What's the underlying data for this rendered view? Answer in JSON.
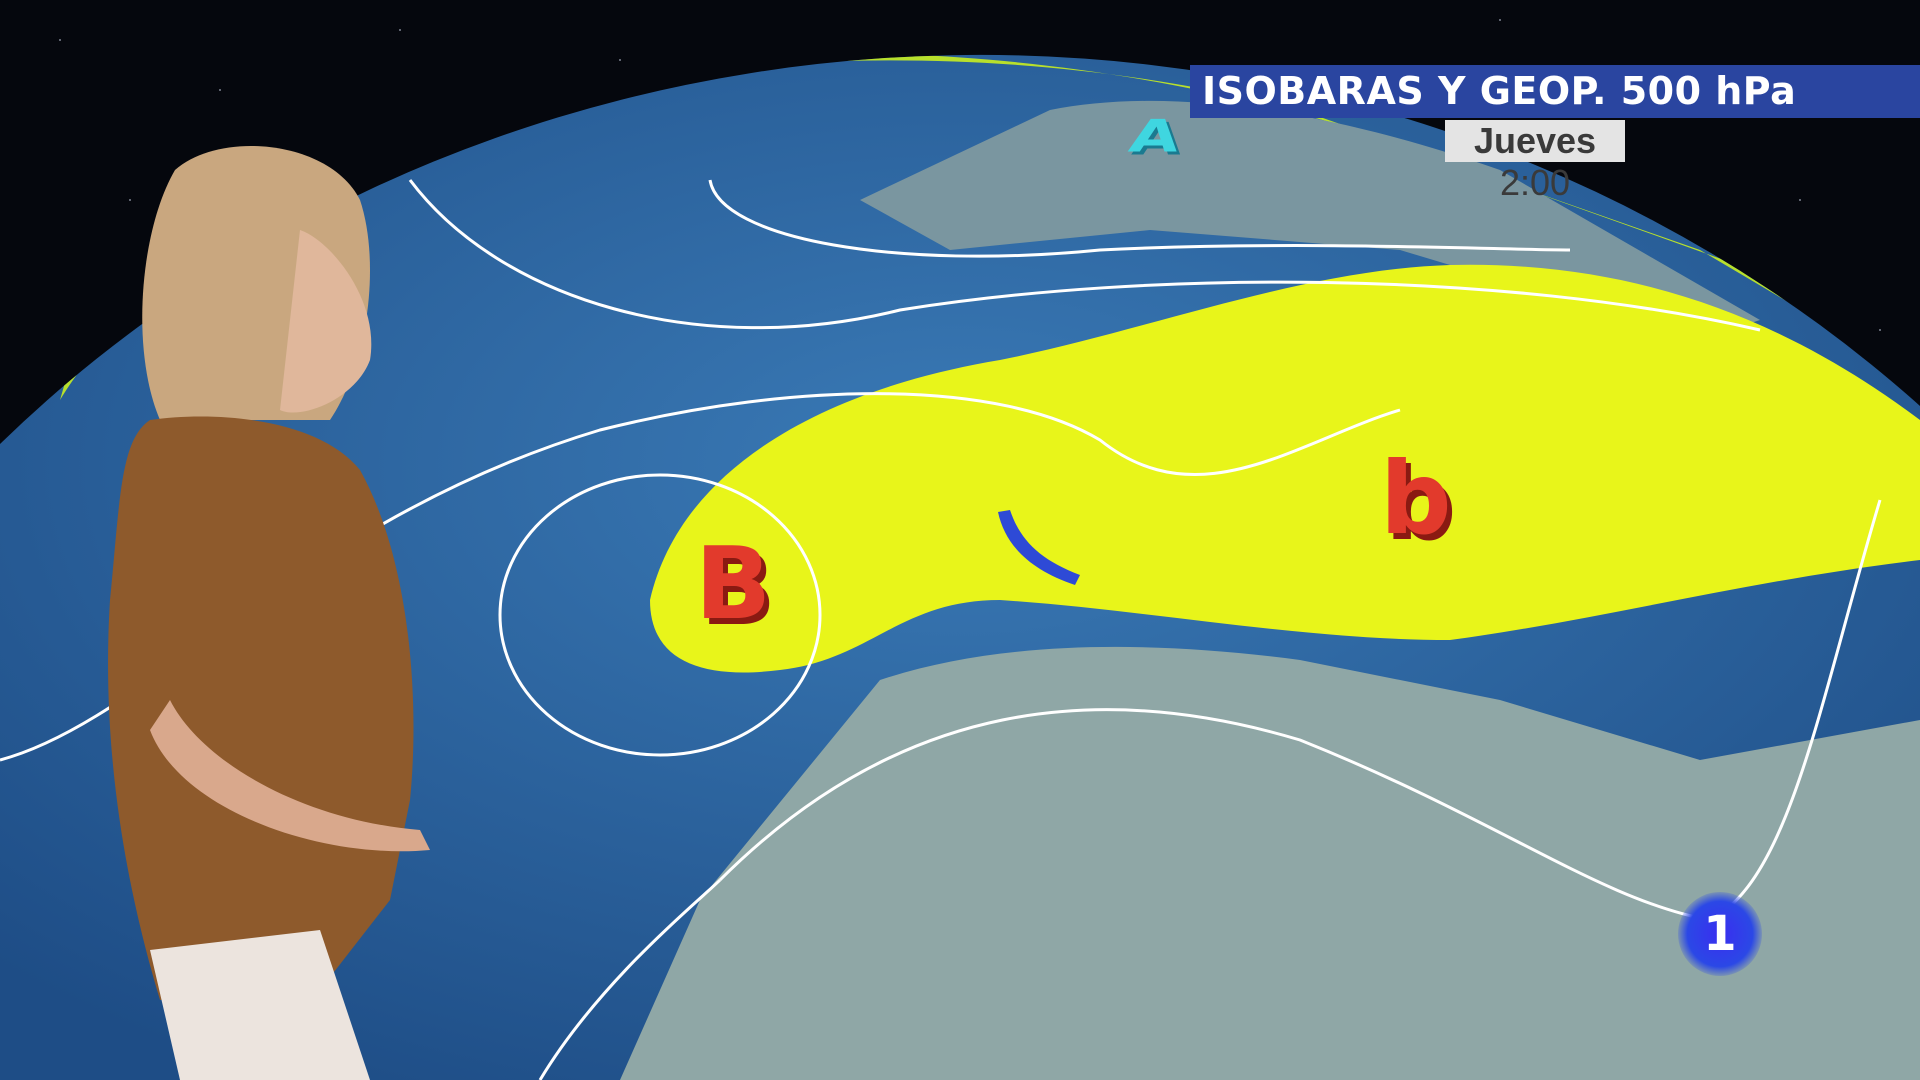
{
  "broadcast": {
    "title": "ISOBARAS Y GEOP. 500 hPa",
    "day": "Jueves",
    "time": "2:00",
    "channel_logo": "1"
  },
  "map": {
    "pressure_labels": {
      "high_north": "A",
      "low_atlantic": "B",
      "low_mediterranean": "b"
    },
    "colors": {
      "ocean": "#2f6aa6",
      "geopotential_high": "#e8f51a",
      "land": "#8fa7a6",
      "space": "#05070d",
      "low_label": "#e23a2c",
      "high_label": "#3fd6e0",
      "title_bar": "#2a45a0"
    }
  }
}
